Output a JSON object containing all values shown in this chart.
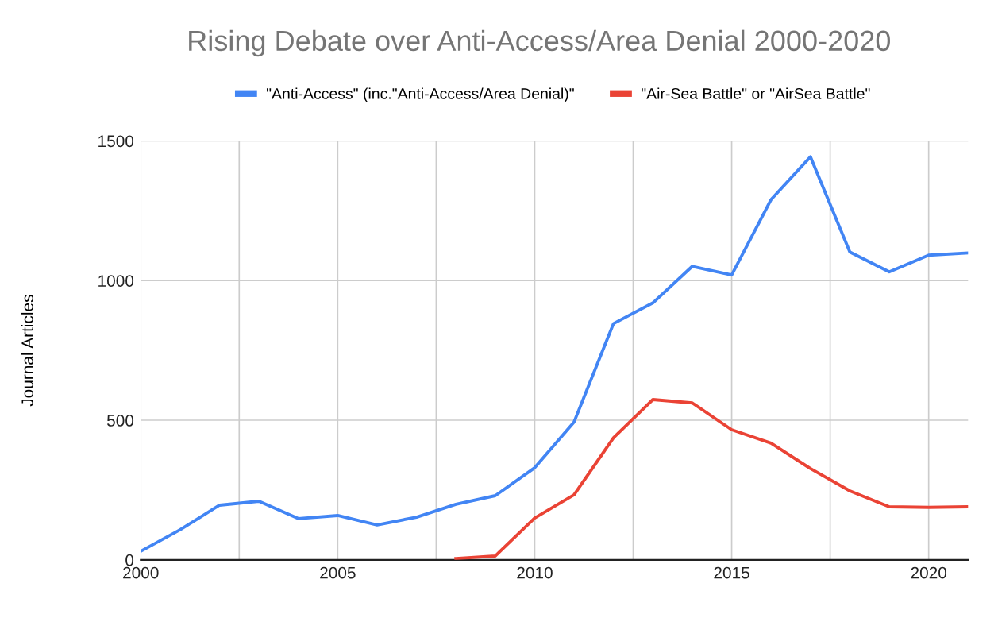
{
  "chart_data": {
    "type": "line",
    "title": "Rising Debate over Anti-Access/Area Denial 2000-2020",
    "ylabel": "Journal Articles",
    "x": [
      2000,
      2001,
      2002,
      2003,
      2004,
      2005,
      2006,
      2007,
      2008,
      2009,
      2010,
      2011,
      2012,
      2013,
      2014,
      2015,
      2016,
      2017,
      2018,
      2019,
      2020,
      2021
    ],
    "series": [
      {
        "name": "\"Anti-Access\" (inc.\"Anti-Access/Area Denial)\"",
        "color": "#4285f4",
        "values": [
          31,
          108,
          196,
          210,
          148,
          159,
          125,
          153,
          199,
          230,
          330,
          494,
          846,
          920,
          1051,
          1020,
          1290,
          1443,
          1102,
          1031,
          1091,
          1099
        ]
      },
      {
        "name": "\"Air-Sea Battle\" or \"AirSea Battle\"",
        "color": "#ea4335",
        "values": [
          null,
          null,
          null,
          null,
          null,
          null,
          null,
          null,
          5,
          14,
          150,
          233,
          437,
          574,
          562,
          466,
          418,
          327,
          247,
          190,
          188,
          190
        ]
      }
    ],
    "xlim": [
      2000,
      2021
    ],
    "xticks": [
      2000,
      {
        "value": 2002.5,
        "label": null
      },
      2005,
      {
        "value": 2007.5,
        "label": null
      },
      2010,
      {
        "value": 2012.5,
        "label": null
      },
      2015,
      {
        "value": 2017.5,
        "label": null
      },
      2020
    ],
    "ylim": [
      0,
      1500
    ],
    "yticks": [
      0,
      500,
      1000,
      1500
    ],
    "grid": true,
    "legend": "top",
    "marker": "none",
    "line_style": "solid"
  }
}
